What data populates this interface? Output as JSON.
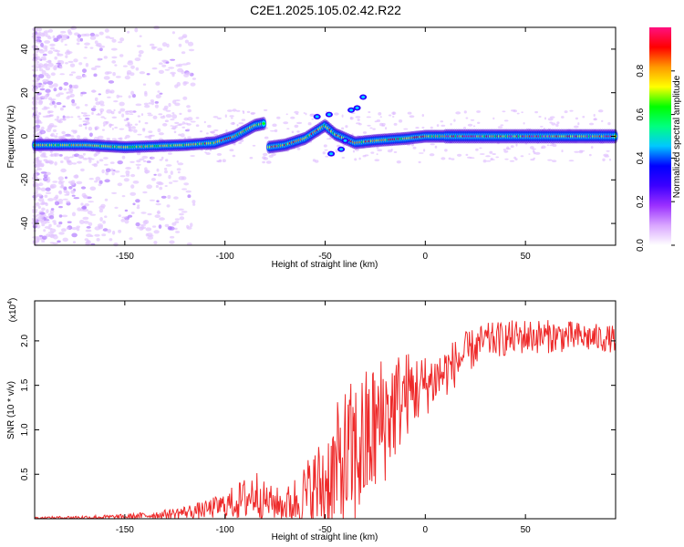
{
  "title": "C2E1.2025.105.02.42.R22",
  "chart_data": [
    {
      "type": "heatmap",
      "xlabel": "Height of straight line (km)",
      "ylabel": "Frequency (Hz)",
      "xlim": [
        -195,
        95
      ],
      "ylim": [
        -50,
        50
      ],
      "xticks": [
        -150,
        -100,
        -50,
        0,
        50
      ],
      "yticks": [
        -40,
        -20,
        0,
        20,
        40
      ],
      "colorbar": {
        "label": "Normalized spectral amplitude",
        "range": [
          0,
          1
        ],
        "ticks": [
          "0.0",
          "0.2",
          "0.4",
          "0.6",
          "0.8"
        ],
        "colors": [
          "#ffffff",
          "#d9a6ff",
          "#9b30ff",
          "#3c00ff",
          "#0000ff",
          "#00c8ff",
          "#00ff80",
          "#00ff00",
          "#ffff00",
          "#ff9900",
          "#ff0000",
          "#ff1080"
        ]
      },
      "ridge": [
        {
          "x": -195,
          "y": -4
        },
        {
          "x": -170,
          "y": -4
        },
        {
          "x": -150,
          "y": -5
        },
        {
          "x": -120,
          "y": -4
        },
        {
          "x": -105,
          "y": -3
        },
        {
          "x": -95,
          "y": 0
        },
        {
          "x": -85,
          "y": 5
        },
        {
          "x": -80,
          "y": 6
        }
      ],
      "ridge2": [
        {
          "x": -78,
          "y": -5
        },
        {
          "x": -70,
          "y": -4
        },
        {
          "x": -60,
          "y": -1
        },
        {
          "x": -50,
          "y": 5
        },
        {
          "x": -45,
          "y": 1
        },
        {
          "x": -35,
          "y": -3
        },
        {
          "x": -25,
          "y": -2
        },
        {
          "x": -10,
          "y": -1
        },
        {
          "x": 0,
          "y": 0
        },
        {
          "x": 20,
          "y": 0
        },
        {
          "x": 50,
          "y": 0
        },
        {
          "x": 95,
          "y": 0
        }
      ]
    },
    {
      "type": "line",
      "xlabel": "Height of straight line (km)",
      "ylabel": "SNR (10 * v/v)",
      "yscale_label": "(x10",
      "yscale_exp": "4",
      "xlim": [
        -195,
        95
      ],
      "ylim": [
        0,
        2.45
      ],
      "xticks": [
        -150,
        -100,
        -50,
        0,
        50
      ],
      "yticks": [
        "0.5",
        "1.0",
        "1.5",
        "2.0"
      ],
      "line_color": "#ee2a2a",
      "envelope": [
        {
          "x": -195,
          "mean": 0.01,
          "amp": 0.01
        },
        {
          "x": -150,
          "mean": 0.02,
          "amp": 0.03
        },
        {
          "x": -130,
          "mean": 0.05,
          "amp": 0.05
        },
        {
          "x": -110,
          "mean": 0.1,
          "amp": 0.1
        },
        {
          "x": -100,
          "mean": 0.15,
          "amp": 0.15
        },
        {
          "x": -90,
          "mean": 0.22,
          "amp": 0.25
        },
        {
          "x": -85,
          "mean": 0.3,
          "amp": 0.3
        },
        {
          "x": -80,
          "mean": 0.2,
          "amp": 0.2
        },
        {
          "x": -70,
          "mean": 0.15,
          "amp": 0.18
        },
        {
          "x": -60,
          "mean": 0.25,
          "amp": 0.4
        },
        {
          "x": -50,
          "mean": 0.4,
          "amp": 0.6
        },
        {
          "x": -40,
          "mean": 0.6,
          "amp": 0.9
        },
        {
          "x": -30,
          "mean": 0.85,
          "amp": 0.85
        },
        {
          "x": -20,
          "mean": 1.15,
          "amp": 0.75
        },
        {
          "x": -10,
          "mean": 1.4,
          "amp": 0.5
        },
        {
          "x": 0,
          "mean": 1.5,
          "amp": 0.35
        },
        {
          "x": 10,
          "mean": 1.65,
          "amp": 0.3
        },
        {
          "x": 20,
          "mean": 1.85,
          "amp": 0.25
        },
        {
          "x": 30,
          "mean": 2.0,
          "amp": 0.2
        },
        {
          "x": 50,
          "mean": 2.05,
          "amp": 0.2
        },
        {
          "x": 70,
          "mean": 2.05,
          "amp": 0.18
        },
        {
          "x": 95,
          "mean": 2.02,
          "amp": 0.15
        }
      ]
    }
  ]
}
